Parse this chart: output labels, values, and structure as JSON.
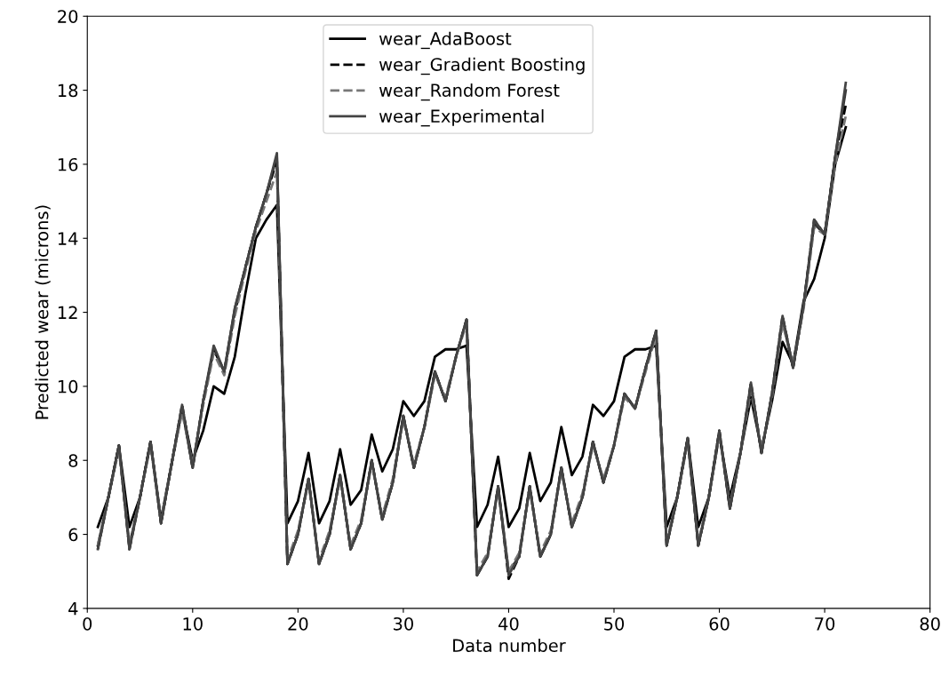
{
  "chart_data": {
    "type": "line",
    "xlabel": "Data number",
    "ylabel": "Predicted wear (microns)",
    "xlim": [
      0,
      80
    ],
    "xticks": [
      0,
      10,
      20,
      30,
      40,
      50,
      60,
      70,
      80
    ],
    "ylim": [
      4,
      20
    ],
    "yticks": [
      4,
      6,
      8,
      10,
      12,
      14,
      16,
      18,
      20
    ],
    "grid": false,
    "legend": "top center",
    "marker": "none",
    "x": [
      1,
      2,
      3,
      4,
      5,
      6,
      7,
      8,
      9,
      10,
      11,
      12,
      13,
      14,
      15,
      16,
      17,
      18,
      19,
      20,
      21,
      22,
      23,
      24,
      25,
      26,
      27,
      28,
      29,
      30,
      31,
      32,
      33,
      34,
      35,
      36,
      37,
      38,
      39,
      40,
      41,
      42,
      43,
      44,
      45,
      46,
      47,
      48,
      49,
      50,
      51,
      52,
      53,
      54,
      55,
      56,
      57,
      58,
      59,
      60,
      61,
      62,
      63,
      64,
      65,
      66,
      67,
      68,
      69,
      70,
      71,
      72
    ],
    "series": [
      {
        "name": "wear_AdaBoost",
        "color": "#000000",
        "line_style": "solid",
        "values": [
          6.2,
          7.0,
          8.4,
          6.2,
          7.0,
          8.5,
          6.4,
          7.9,
          9.4,
          8.0,
          8.8,
          10.0,
          9.8,
          10.8,
          12.5,
          14.0,
          14.5,
          14.9,
          6.3,
          6.9,
          8.2,
          6.3,
          6.9,
          8.3,
          6.8,
          7.2,
          8.7,
          7.7,
          8.3,
          9.6,
          9.2,
          9.6,
          10.8,
          11.0,
          11.0,
          11.1,
          6.2,
          6.8,
          8.1,
          6.2,
          6.7,
          8.2,
          6.9,
          7.4,
          8.9,
          7.6,
          8.1,
          9.5,
          9.2,
          9.6,
          10.8,
          11.0,
          11.0,
          11.1,
          6.2,
          7.0,
          8.6,
          6.2,
          7.0,
          8.7,
          7.0,
          8.2,
          9.7,
          8.3,
          9.6,
          11.2,
          10.6,
          12.3,
          12.9,
          14.0,
          16.0,
          17.0
        ]
      },
      {
        "color": "#333333",
        "line_style": "solid",
        "values": [
          5.7,
          7.0,
          8.4,
          5.7,
          7.0,
          8.5,
          6.3,
          7.9,
          9.4,
          7.8,
          9.6,
          11.0,
          10.4,
          12.1,
          13.2,
          14.3,
          15.2,
          16.2,
          5.2,
          6.0,
          7.5,
          5.2,
          6.0,
          7.6,
          5.6,
          6.3,
          8.0,
          6.4,
          7.4,
          9.2,
          7.8,
          8.9,
          10.4,
          9.6,
          10.8,
          11.8,
          4.9,
          5.4,
          7.3,
          5.0,
          5.4,
          7.3,
          5.4,
          6.0,
          7.8,
          6.2,
          7.0,
          8.5,
          7.4,
          8.4,
          9.8,
          9.4,
          10.5,
          11.5,
          5.7,
          7.0,
          8.6,
          5.7,
          7.0,
          8.8,
          6.7,
          8.2,
          10.0,
          8.2,
          9.8,
          11.8,
          10.5,
          12.2,
          14.4,
          14.1,
          16.2,
          18.0
        ]
      },
      {
        "name": "wear_Gradient Boosting",
        "color": "#000000",
        "line_style": "dashed",
        "values": [
          5.6,
          7.0,
          8.4,
          5.6,
          7.0,
          8.5,
          6.3,
          7.9,
          9.5,
          7.8,
          9.6,
          11.0,
          10.4,
          12.0,
          13.2,
          14.3,
          15.2,
          16.1,
          5.2,
          6.0,
          7.5,
          5.2,
          6.0,
          7.6,
          5.6,
          6.3,
          8.0,
          6.4,
          7.4,
          9.2,
          7.8,
          8.9,
          10.4,
          9.6,
          10.8,
          11.8,
          4.9,
          5.4,
          7.3,
          4.8,
          5.4,
          7.3,
          5.4,
          6.0,
          7.8,
          6.2,
          7.0,
          8.5,
          7.4,
          8.4,
          9.8,
          9.4,
          10.5,
          11.5,
          5.7,
          7.0,
          8.6,
          5.7,
          7.0,
          8.8,
          6.7,
          8.2,
          10.1,
          8.2,
          9.8,
          11.9,
          10.5,
          12.2,
          14.5,
          14.1,
          16.2,
          17.6
        ]
      },
      {
        "name": "wear_Random Forest",
        "color": "#777777",
        "line_style": "dashed",
        "values": [
          5.7,
          7.0,
          8.3,
          5.7,
          7.0,
          8.4,
          6.4,
          7.9,
          9.3,
          7.9,
          9.5,
          10.9,
          10.3,
          11.9,
          13.1,
          14.2,
          15.0,
          15.8,
          5.3,
          6.1,
          7.4,
          5.3,
          6.1,
          7.5,
          5.7,
          6.4,
          7.9,
          6.5,
          7.5,
          9.1,
          7.9,
          8.9,
          10.3,
          9.7,
          10.8,
          11.7,
          5.0,
          5.5,
          7.2,
          5.0,
          5.5,
          7.2,
          5.5,
          6.1,
          7.7,
          6.3,
          7.1,
          8.4,
          7.5,
          8.4,
          9.7,
          9.4,
          10.4,
          11.4,
          5.8,
          7.0,
          8.5,
          5.8,
          7.0,
          8.7,
          6.8,
          8.2,
          9.9,
          8.3,
          9.7,
          11.7,
          10.6,
          12.1,
          14.3,
          14.1,
          16.0,
          17.3
        ]
      },
      {
        "name": "wear_Experimental",
        "color": "#444444",
        "line_style": "solid",
        "values": [
          5.6,
          7.0,
          8.4,
          5.6,
          7.0,
          8.5,
          6.3,
          7.9,
          9.5,
          7.8,
          9.6,
          11.1,
          10.4,
          12.1,
          13.2,
          14.3,
          15.2,
          16.3,
          5.2,
          6.0,
          7.5,
          5.2,
          6.0,
          7.6,
          5.6,
          6.3,
          8.0,
          6.4,
          7.4,
          9.2,
          7.8,
          8.9,
          10.4,
          9.6,
          10.8,
          11.8,
          4.9,
          5.4,
          7.3,
          4.9,
          5.4,
          7.3,
          5.4,
          6.0,
          7.8,
          6.2,
          7.0,
          8.5,
          7.4,
          8.4,
          9.8,
          9.4,
          10.5,
          11.5,
          5.7,
          7.0,
          8.6,
          5.7,
          7.0,
          8.8,
          6.7,
          8.2,
          10.1,
          8.2,
          9.8,
          11.9,
          10.5,
          12.2,
          14.5,
          14.1,
          16.2,
          18.2
        ]
      }
    ]
  }
}
